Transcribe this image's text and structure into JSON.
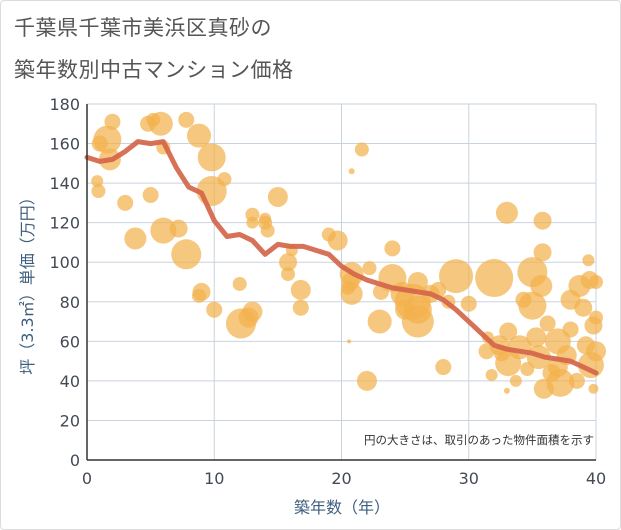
{
  "header": {
    "title_line1": "千葉県千葉市美浜区真砂の",
    "title_line2": "築年数別中古マンション価格"
  },
  "chart_data": {
    "type": "scatter",
    "title": "千葉県千葉市美浜区真砂の築年数別中古マンション価格",
    "xlabel": "築年数（年）",
    "ylabel": "坪（3.3㎡）単価（万円）",
    "xlim": [
      0,
      40
    ],
    "ylim": [
      0,
      180
    ],
    "x_ticks": [
      "0",
      "10",
      "20",
      "30",
      "40"
    ],
    "y_ticks": [
      "0",
      "20",
      "40",
      "60",
      "80",
      "100",
      "120",
      "140",
      "160",
      "180"
    ],
    "grid": true,
    "annotation": "円の大きさは、取引のあった物件面積を示す",
    "colors": {
      "bubble": "#f2b24c",
      "line": "#d4654a",
      "grid": "#c9d3de"
    },
    "line_series": {
      "x": [
        0,
        1,
        2,
        3,
        4,
        5,
        6,
        7,
        8,
        9,
        10,
        11,
        12,
        13,
        14,
        15,
        16,
        17,
        18,
        19,
        20,
        21,
        22,
        23,
        24,
        25,
        26,
        27,
        28,
        29,
        30,
        31,
        32,
        33,
        34,
        35,
        36,
        37,
        38,
        39,
        40
      ],
      "y": [
        153,
        151,
        152,
        156,
        161,
        160,
        161,
        148,
        138,
        135,
        121,
        113,
        114,
        111,
        104,
        109,
        108,
        108,
        106,
        104,
        98,
        94,
        91,
        89,
        87,
        86,
        85,
        84,
        81,
        76,
        70,
        64,
        58,
        56,
        55,
        54,
        52,
        51,
        50,
        47,
        44
      ]
    },
    "bubbles": [
      {
        "x": 1,
        "y": 160,
        "s": 8
      },
      {
        "x": 1.6,
        "y": 162,
        "s": 14
      },
      {
        "x": 1.8,
        "y": 152,
        "s": 11
      },
      {
        "x": 2,
        "y": 171,
        "s": 8
      },
      {
        "x": 0.8,
        "y": 141,
        "s": 6
      },
      {
        "x": 0.9,
        "y": 136,
        "s": 7
      },
      {
        "x": 3,
        "y": 130,
        "s": 8
      },
      {
        "x": 3.8,
        "y": 112,
        "s": 11
      },
      {
        "x": 4.8,
        "y": 170,
        "s": 8
      },
      {
        "x": 5.2,
        "y": 172,
        "s": 7
      },
      {
        "x": 5.8,
        "y": 170,
        "s": 12
      },
      {
        "x": 6,
        "y": 158,
        "s": 7
      },
      {
        "x": 5,
        "y": 134,
        "s": 8
      },
      {
        "x": 6,
        "y": 116,
        "s": 13
      },
      {
        "x": 7.2,
        "y": 117,
        "s": 9
      },
      {
        "x": 7.8,
        "y": 104,
        "s": 15
      },
      {
        "x": 7.8,
        "y": 172,
        "s": 8
      },
      {
        "x": 8.8,
        "y": 164,
        "s": 12
      },
      {
        "x": 9.8,
        "y": 153,
        "s": 14
      },
      {
        "x": 9.8,
        "y": 136,
        "s": 15
      },
      {
        "x": 10.8,
        "y": 142,
        "s": 7
      },
      {
        "x": 9,
        "y": 85,
        "s": 9
      },
      {
        "x": 8.8,
        "y": 83,
        "s": 7
      },
      {
        "x": 10,
        "y": 76,
        "s": 8
      },
      {
        "x": 12,
        "y": 89,
        "s": 7
      },
      {
        "x": 12.1,
        "y": 69,
        "s": 15
      },
      {
        "x": 12.7,
        "y": 72,
        "s": 10
      },
      {
        "x": 13,
        "y": 75,
        "s": 10
      },
      {
        "x": 13,
        "y": 124,
        "s": 7
      },
      {
        "x": 13,
        "y": 120,
        "s": 6
      },
      {
        "x": 14,
        "y": 120,
        "s": 7
      },
      {
        "x": 14,
        "y": 122,
        "s": 6
      },
      {
        "x": 14.2,
        "y": 116,
        "s": 7
      },
      {
        "x": 15,
        "y": 133,
        "s": 10
      },
      {
        "x": 15.8,
        "y": 100,
        "s": 9
      },
      {
        "x": 15.8,
        "y": 94,
        "s": 7
      },
      {
        "x": 16.1,
        "y": 106,
        "s": 6
      },
      {
        "x": 16.8,
        "y": 86,
        "s": 10
      },
      {
        "x": 16.8,
        "y": 77,
        "s": 8
      },
      {
        "x": 19,
        "y": 114,
        "s": 7
      },
      {
        "x": 19.7,
        "y": 111,
        "s": 10
      },
      {
        "x": 20.5,
        "y": 87,
        "s": 7
      },
      {
        "x": 20.7,
        "y": 90,
        "s": 9
      },
      {
        "x": 20.8,
        "y": 94,
        "s": 12
      },
      {
        "x": 20.8,
        "y": 84,
        "s": 11
      },
      {
        "x": 20.8,
        "y": 146,
        "s": 3
      },
      {
        "x": 21.6,
        "y": 157,
        "s": 7
      },
      {
        "x": 20.6,
        "y": 60,
        "s": 2
      },
      {
        "x": 22,
        "y": 40,
        "s": 10
      },
      {
        "x": 22.2,
        "y": 97,
        "s": 7
      },
      {
        "x": 23,
        "y": 70,
        "s": 12
      },
      {
        "x": 23.1,
        "y": 85,
        "s": 8
      },
      {
        "x": 24,
        "y": 107,
        "s": 8
      },
      {
        "x": 24,
        "y": 92,
        "s": 14
      },
      {
        "x": 24.8,
        "y": 84,
        "s": 12
      },
      {
        "x": 25,
        "y": 76,
        "s": 10
      },
      {
        "x": 25.6,
        "y": 80,
        "s": 18
      },
      {
        "x": 26,
        "y": 90,
        "s": 10
      },
      {
        "x": 26,
        "y": 76,
        "s": 14
      },
      {
        "x": 26,
        "y": 70,
        "s": 16
      },
      {
        "x": 27,
        "y": 84,
        "s": 9
      },
      {
        "x": 27.6,
        "y": 86,
        "s": 8
      },
      {
        "x": 28,
        "y": 47,
        "s": 8
      },
      {
        "x": 28.4,
        "y": 80,
        "s": 7
      },
      {
        "x": 29,
        "y": 93,
        "s": 17
      },
      {
        "x": 30,
        "y": 79,
        "s": 8
      },
      {
        "x": 31.4,
        "y": 55,
        "s": 8
      },
      {
        "x": 31.5,
        "y": 62,
        "s": 6
      },
      {
        "x": 31.8,
        "y": 43,
        "s": 6
      },
      {
        "x": 32,
        "y": 92,
        "s": 19
      },
      {
        "x": 32.4,
        "y": 58,
        "s": 10
      },
      {
        "x": 32.6,
        "y": 54,
        "s": 8
      },
      {
        "x": 33,
        "y": 125,
        "s": 11
      },
      {
        "x": 33.1,
        "y": 49,
        "s": 13
      },
      {
        "x": 33.1,
        "y": 65,
        "s": 9
      },
      {
        "x": 33,
        "y": 35,
        "s": 3
      },
      {
        "x": 33.7,
        "y": 40,
        "s": 6
      },
      {
        "x": 34,
        "y": 57,
        "s": 12
      },
      {
        "x": 34.3,
        "y": 81,
        "s": 8
      },
      {
        "x": 34.6,
        "y": 46,
        "s": 7
      },
      {
        "x": 35,
        "y": 95,
        "s": 15
      },
      {
        "x": 35,
        "y": 78,
        "s": 14
      },
      {
        "x": 35.3,
        "y": 62,
        "s": 10
      },
      {
        "x": 35.5,
        "y": 52,
        "s": 12
      },
      {
        "x": 35.8,
        "y": 121,
        "s": 9
      },
      {
        "x": 35.8,
        "y": 105,
        "s": 9
      },
      {
        "x": 35.7,
        "y": 88,
        "s": 11
      },
      {
        "x": 35.9,
        "y": 36,
        "s": 10
      },
      {
        "x": 36.2,
        "y": 69,
        "s": 8
      },
      {
        "x": 36.5,
        "y": 44,
        "s": 9
      },
      {
        "x": 37,
        "y": 60,
        "s": 13
      },
      {
        "x": 37.2,
        "y": 39,
        "s": 14
      },
      {
        "x": 37,
        "y": 47,
        "s": 10
      },
      {
        "x": 37.7,
        "y": 53,
        "s": 10
      },
      {
        "x": 38,
        "y": 81,
        "s": 10
      },
      {
        "x": 38,
        "y": 66,
        "s": 8
      },
      {
        "x": 38.5,
        "y": 40,
        "s": 8
      },
      {
        "x": 38.7,
        "y": 88,
        "s": 11
      },
      {
        "x": 39,
        "y": 77,
        "s": 9
      },
      {
        "x": 39.2,
        "y": 58,
        "s": 9
      },
      {
        "x": 39.4,
        "y": 101,
        "s": 6
      },
      {
        "x": 39.5,
        "y": 91,
        "s": 9
      },
      {
        "x": 39.6,
        "y": 48,
        "s": 13
      },
      {
        "x": 39.8,
        "y": 68,
        "s": 9
      },
      {
        "x": 39.8,
        "y": 36,
        "s": 5
      },
      {
        "x": 40,
        "y": 55,
        "s": 10
      },
      {
        "x": 40,
        "y": 90,
        "s": 7
      },
      {
        "x": 40,
        "y": 72,
        "s": 7
      }
    ]
  }
}
